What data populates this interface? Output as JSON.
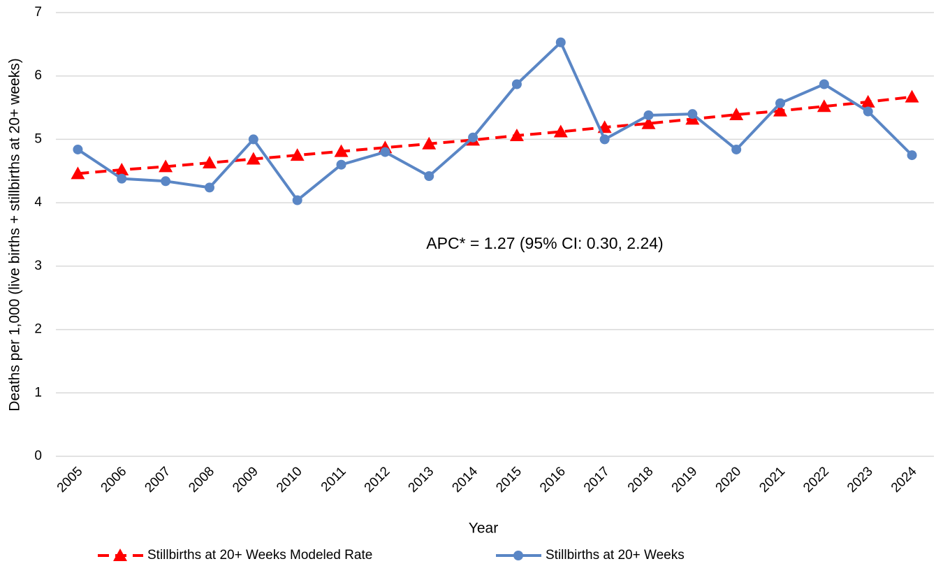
{
  "chart_data": {
    "type": "line",
    "x_label": "Year",
    "y_label": "Deaths per 1,000 (live births + stillbirths at 20+ weeks)",
    "annotation": "APC* = 1.27 (95% CI: 0.30, 2.24)",
    "categories": [
      "2005",
      "2006",
      "2007",
      "2008",
      "2009",
      "2010",
      "2011",
      "2012",
      "2013",
      "2014",
      "2015",
      "2016",
      "2017",
      "2018",
      "2019",
      "2020",
      "2021",
      "2022",
      "2023",
      "2024"
    ],
    "series": [
      {
        "name": "Stillbirths at 20+ Weeks Modeled Rate",
        "color": "#ff0000",
        "dashed": true,
        "marker": "triangle",
        "values": [
          4.46,
          4.52,
          4.57,
          4.63,
          4.69,
          4.75,
          4.81,
          4.87,
          4.93,
          4.99,
          5.06,
          5.12,
          5.19,
          5.25,
          5.32,
          5.39,
          5.45,
          5.52,
          5.59,
          5.67
        ]
      },
      {
        "name": "Stillbirths at 20+ Weeks",
        "color": "#5a86c5",
        "dashed": false,
        "marker": "circle",
        "values": [
          4.84,
          4.38,
          4.34,
          4.24,
          5.0,
          4.04,
          4.6,
          4.8,
          4.42,
          5.03,
          5.87,
          6.53,
          5.0,
          5.38,
          5.4,
          4.84,
          5.57,
          5.87,
          5.44,
          4.75
        ]
      }
    ],
    "ylim": [
      0,
      7
    ],
    "yticks": [
      0,
      1,
      2,
      3,
      4,
      5,
      6,
      7
    ],
    "grid": true,
    "legend": "bottom"
  }
}
